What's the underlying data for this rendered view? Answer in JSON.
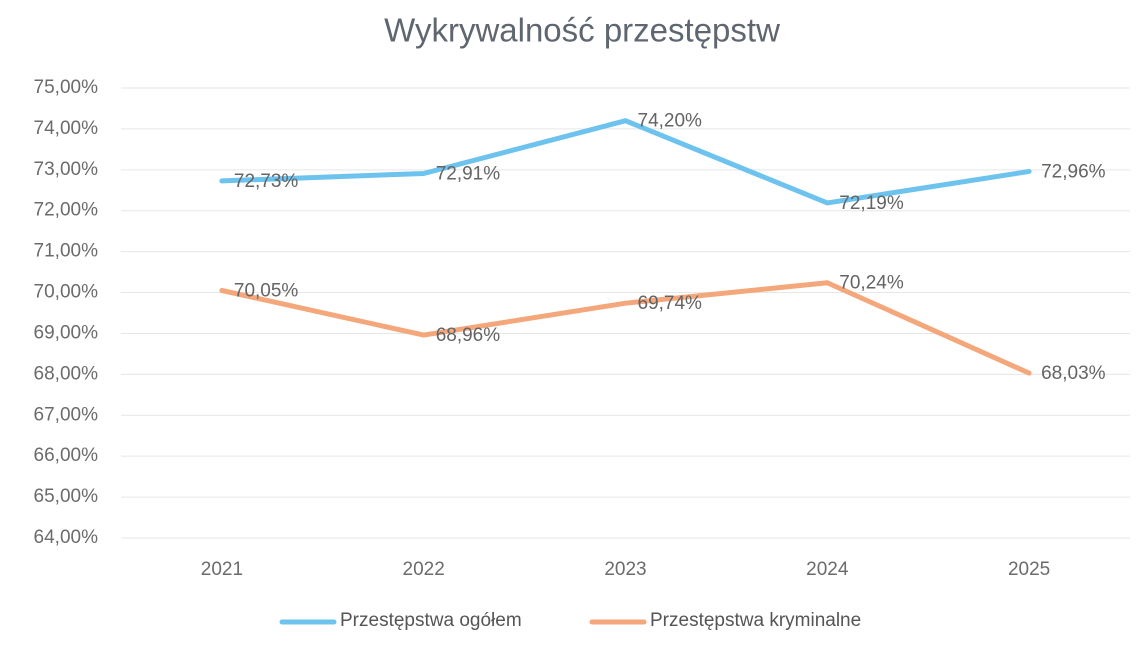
{
  "chart_data": {
    "type": "line",
    "title": "Wykrywalność przestępstw",
    "categories": [
      "2021",
      "2022",
      "2023",
      "2024",
      "2025"
    ],
    "series": [
      {
        "name": "Przestępstwa ogółem",
        "color": "#6ec3ee",
        "values": [
          72.73,
          72.91,
          74.2,
          72.19,
          72.96
        ],
        "value_labels": [
          "72,73%",
          "72,91%",
          "74,20%",
          "72,19%",
          "72,96%"
        ]
      },
      {
        "name": "Przestępstwa kryminalne",
        "color": "#f3a77b",
        "values": [
          70.05,
          68.96,
          69.74,
          70.24,
          68.03
        ],
        "value_labels": [
          "70,05%",
          "68,96%",
          "69,74%",
          "70,24%",
          "68,03%"
        ]
      }
    ],
    "ylim": [
      64,
      75
    ],
    "yticks": [
      {
        "value": 64,
        "label": "64,00%"
      },
      {
        "value": 65,
        "label": "65,00%"
      },
      {
        "value": 66,
        "label": "66,00%"
      },
      {
        "value": 67,
        "label": "67,00%"
      },
      {
        "value": 68,
        "label": "68,00%"
      },
      {
        "value": 69,
        "label": "69,00%"
      },
      {
        "value": 70,
        "label": "70,00%"
      },
      {
        "value": 71,
        "label": "71,00%"
      },
      {
        "value": 72,
        "label": "72,00%"
      },
      {
        "value": 73,
        "label": "73,00%"
      },
      {
        "value": 74,
        "label": "74,00%"
      },
      {
        "value": 75,
        "label": "75,00%"
      }
    ],
    "grid": true,
    "legend": "bottom"
  }
}
